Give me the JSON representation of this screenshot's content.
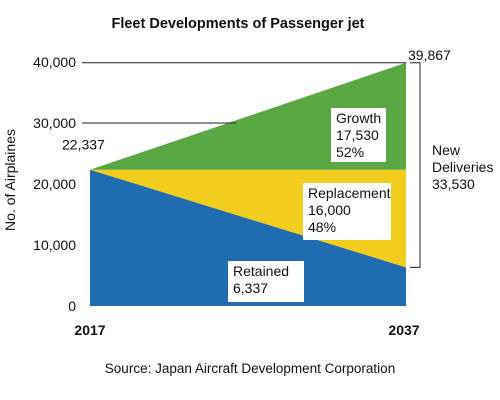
{
  "chart_data": {
    "type": "area",
    "title": "Fleet Developments of Passenger  jet",
    "ylabel": "No. of Airplaines",
    "ylim": [
      0,
      40000
    ],
    "yticks": [
      0,
      10000,
      20000,
      30000,
      40000
    ],
    "ytick_labels": [
      "0",
      "10,000",
      "20,000",
      "30,000",
      "40,000"
    ],
    "x": [
      "2017",
      "2037"
    ],
    "start_total": 22337,
    "start_total_label": "22,337",
    "end_total": 39867,
    "end_total_label": "39,867",
    "series": [
      {
        "name": "Retained",
        "values": [
          22337,
          6337
        ],
        "color": "#1f6cb0",
        "label_lines": [
          "Retained",
          "6,337"
        ]
      },
      {
        "name": "Replacement",
        "values": [
          0,
          16000
        ],
        "color": "#f2cd1e",
        "label_lines": [
          "Replacement",
          "16,000",
          "48%"
        ]
      },
      {
        "name": "Growth",
        "values": [
          0,
          17530
        ],
        "color": "#5aa843",
        "label_lines": [
          "Growth",
          "17,530",
          "52%"
        ]
      }
    ],
    "bracket": {
      "lines": [
        "New",
        "Deliveries",
        "33,530"
      ],
      "value": 33530
    },
    "source": "Source: Japan Aircraft Development Corporation"
  }
}
